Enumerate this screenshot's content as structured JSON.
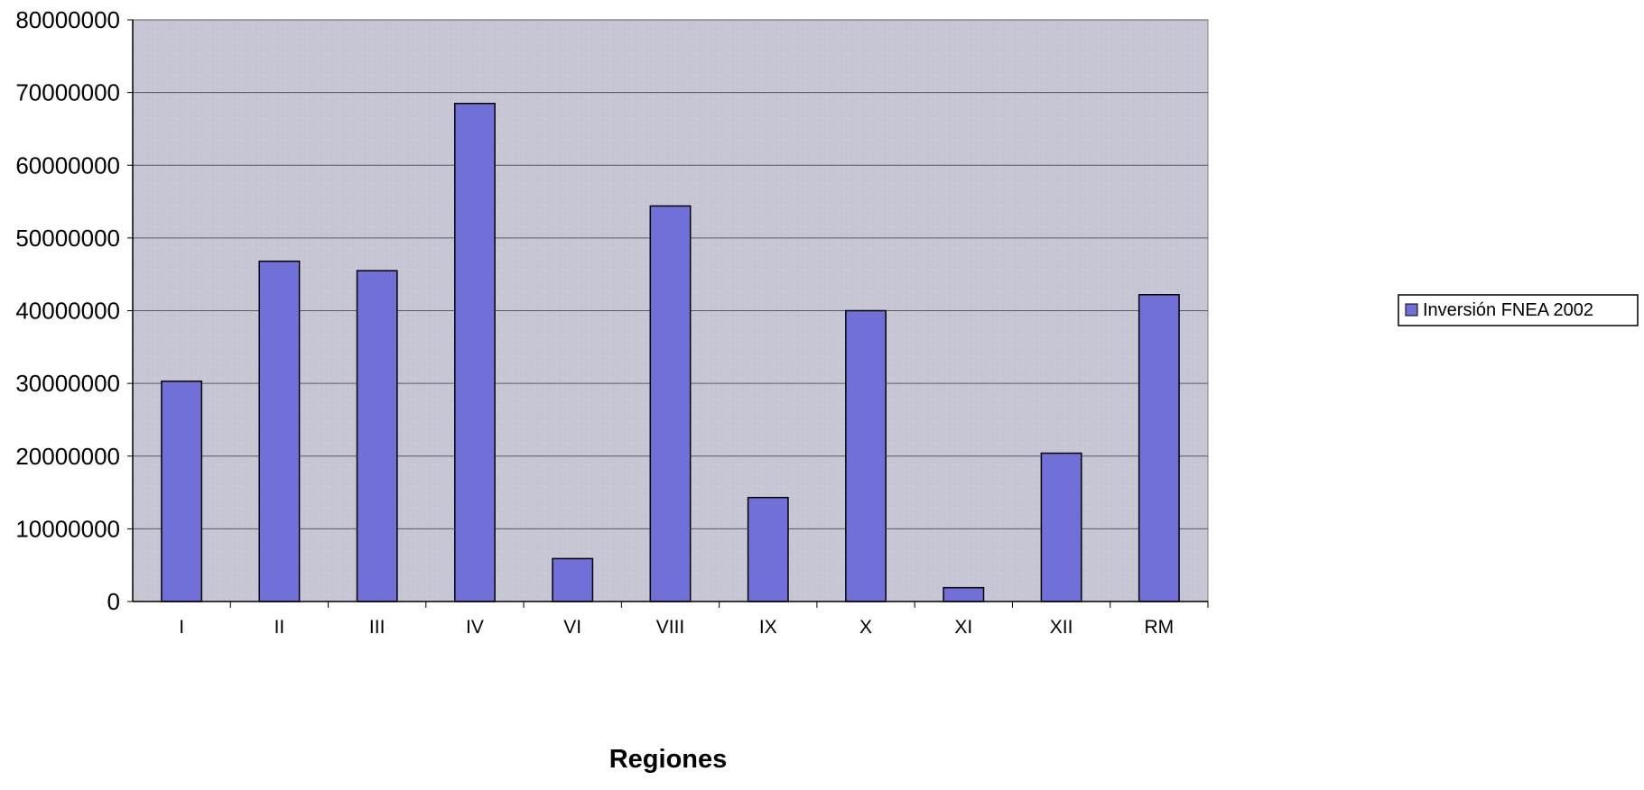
{
  "chart_data": {
    "type": "bar",
    "categories": [
      "I",
      "II",
      "III",
      "IV",
      "VI",
      "VIII",
      "IX",
      "X",
      "XI",
      "XII",
      "RM"
    ],
    "series": [
      {
        "name": "Inversión FNEA 2002",
        "values": [
          30300000,
          46800000,
          45500000,
          68500000,
          5900000,
          54400000,
          14300000,
          40000000,
          1900000,
          20400000,
          42200000
        ]
      }
    ],
    "xlabel": "Regiones",
    "ylabel": "",
    "ylim": [
      0,
      80000000
    ],
    "yticks": [
      "0",
      "10000000",
      "20000000",
      "30000000",
      "40000000",
      "50000000",
      "60000000",
      "70000000",
      "80000000"
    ],
    "grid": true,
    "legend": "right",
    "colors": {
      "bar": "#7070d8",
      "plot_background": "#c6c6d4",
      "gridline": "#5a5a5a"
    }
  }
}
